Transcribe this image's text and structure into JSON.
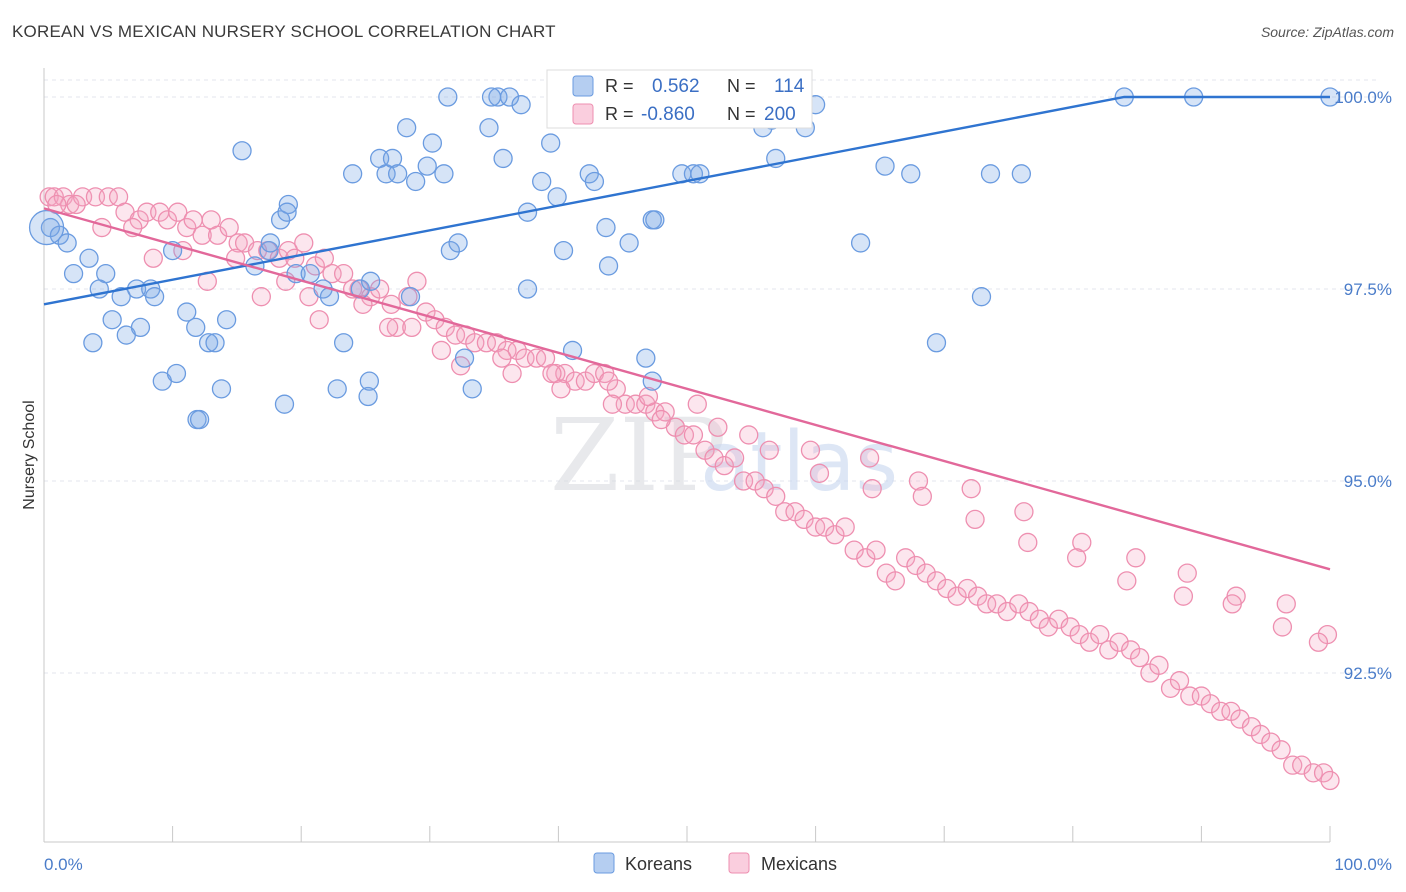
{
  "title": "KOREAN VS MEXICAN NURSERY SCHOOL CORRELATION CHART",
  "source": "Source: ZipAtlas.com",
  "watermark": {
    "zip": "ZIP",
    "atlas": "atlas"
  },
  "colors": {
    "korean": "#6a9be0",
    "korean_fill": "rgba(120,165,230,0.30)",
    "korean_line": "#2f74d0",
    "mexican": "#ee8fb0",
    "mexican_fill": "rgba(245,165,195,0.28)",
    "mexican_line": "#e2689a",
    "tick_label": "#4a7cc9",
    "grid": "#e3e6ee"
  },
  "legend": {
    "r_label": "R =",
    "n_label": "N =",
    "korean_r": "0.562",
    "korean_n": "114",
    "mexican_r": "-0.860",
    "mexican_n": "200"
  },
  "chart_data": {
    "type": "scatter",
    "title": "KOREAN VS MEXICAN NURSERY SCHOOL CORRELATION CHART",
    "xlabel": "",
    "ylabel": "Nursery School",
    "xlim": [
      0,
      100
    ],
    "ylim": [
      90.0,
      100.4
    ],
    "x_tick_labels": [
      "0.0%",
      "100.0%"
    ],
    "y_ticks": [
      92.5,
      95.0,
      97.5,
      100.0
    ],
    "y_tick_labels": [
      "92.5%",
      "95.0%",
      "97.5%",
      "100.0%"
    ],
    "grid": true,
    "legend_position": "top-center",
    "series": [
      {
        "name": "Koreans",
        "r": 0.562,
        "n": 114,
        "trend": [
          [
            0,
            97.3
          ],
          [
            84,
            100.0
          ],
          [
            100,
            100.0
          ]
        ],
        "points": [
          [
            0.5,
            98.3
          ],
          [
            1.2,
            98.2
          ],
          [
            1.8,
            98.1
          ],
          [
            3.5,
            97.9
          ],
          [
            2.3,
            97.7
          ],
          [
            4.8,
            97.7
          ],
          [
            4.3,
            97.5
          ],
          [
            6.0,
            97.4
          ],
          [
            7.2,
            97.5
          ],
          [
            8.3,
            97.5
          ],
          [
            8.6,
            97.4
          ],
          [
            10.0,
            98.0
          ],
          [
            11.1,
            97.2
          ],
          [
            11.8,
            97.0
          ],
          [
            12.8,
            96.8
          ],
          [
            13.3,
            96.8
          ],
          [
            14.2,
            97.1
          ],
          [
            5.3,
            97.1
          ],
          [
            7.5,
            97.0
          ],
          [
            9.2,
            96.3
          ],
          [
            6.4,
            96.9
          ],
          [
            3.8,
            96.8
          ],
          [
            10.3,
            96.4
          ],
          [
            13.8,
            96.2
          ],
          [
            11.9,
            95.8
          ],
          [
            12.1,
            95.8
          ],
          [
            15.4,
            99.3
          ],
          [
            17.5,
            98.0
          ],
          [
            18.4,
            98.4
          ],
          [
            19.0,
            98.6
          ],
          [
            18.9,
            98.5
          ],
          [
            16.4,
            97.8
          ],
          [
            17.6,
            98.1
          ],
          [
            19.6,
            97.7
          ],
          [
            20.7,
            97.7
          ],
          [
            21.7,
            97.5
          ],
          [
            22.2,
            97.4
          ],
          [
            23.3,
            96.8
          ],
          [
            24.0,
            99.0
          ],
          [
            24.6,
            97.5
          ],
          [
            25.4,
            97.6
          ],
          [
            26.1,
            99.2
          ],
          [
            26.6,
            99.0
          ],
          [
            27.1,
            99.2
          ],
          [
            27.5,
            99.0
          ],
          [
            28.2,
            99.6
          ],
          [
            28.5,
            97.4
          ],
          [
            28.9,
            98.9
          ],
          [
            29.8,
            99.1
          ],
          [
            30.2,
            99.4
          ],
          [
            31.1,
            99.0
          ],
          [
            31.6,
            98.0
          ],
          [
            32.2,
            98.1
          ],
          [
            32.7,
            96.6
          ],
          [
            33.3,
            96.2
          ],
          [
            34.6,
            99.6
          ],
          [
            35.3,
            100.0
          ],
          [
            35.7,
            99.2
          ],
          [
            36.2,
            100.0
          ],
          [
            37.1,
            99.9
          ],
          [
            37.6,
            98.5
          ],
          [
            37.6,
            97.5
          ],
          [
            38.7,
            98.9
          ],
          [
            39.4,
            99.4
          ],
          [
            39.9,
            98.7
          ],
          [
            40.4,
            98.0
          ],
          [
            41.1,
            96.7
          ],
          [
            41.6,
            100.0
          ],
          [
            42.4,
            99.0
          ],
          [
            42.8,
            98.9
          ],
          [
            43.7,
            98.3
          ],
          [
            45.5,
            98.1
          ],
          [
            46.8,
            96.6
          ],
          [
            47.3,
            98.4
          ],
          [
            47.5,
            98.4
          ],
          [
            48.3,
            100.0
          ],
          [
            49.6,
            99.0
          ],
          [
            50.5,
            99.0
          ],
          [
            51.0,
            99.0
          ],
          [
            52.9,
            99.8
          ],
          [
            54.2,
            100.0
          ],
          [
            55.9,
            99.6
          ],
          [
            56.9,
            99.2
          ],
          [
            59.2,
            99.6
          ],
          [
            65.4,
            99.1
          ],
          [
            67.4,
            99.0
          ],
          [
            69.4,
            96.8
          ],
          [
            72.9,
            97.4
          ],
          [
            18.7,
            96.0
          ],
          [
            22.8,
            96.2
          ],
          [
            25.2,
            96.1
          ],
          [
            31.4,
            100.0
          ],
          [
            34.8,
            100.0
          ],
          [
            41.0,
            100.0
          ],
          [
            43.9,
            97.8
          ],
          [
            56.2,
            100.0
          ],
          [
            57.3,
            99.9
          ],
          [
            56.6,
            99.7
          ],
          [
            76.0,
            99.0
          ],
          [
            73.6,
            99.0
          ],
          [
            63.5,
            98.1
          ],
          [
            47.3,
            96.3
          ],
          [
            25.3,
            96.3
          ],
          [
            84.0,
            100.0
          ],
          [
            89.4,
            100.0
          ],
          [
            100.0,
            100.0
          ],
          [
            60.0,
            99.9
          ]
        ]
      },
      {
        "name": "Mexicans",
        "r": -0.86,
        "n": 200,
        "trend": [
          [
            0,
            98.55
          ],
          [
            100,
            93.85
          ]
        ],
        "points": [
          [
            0.4,
            98.7
          ],
          [
            0.8,
            98.7
          ],
          [
            1.5,
            98.7
          ],
          [
            2.0,
            98.6
          ],
          [
            3.0,
            98.7
          ],
          [
            4.0,
            98.7
          ],
          [
            5.0,
            98.7
          ],
          [
            5.8,
            98.7
          ],
          [
            6.3,
            98.5
          ],
          [
            7.4,
            98.4
          ],
          [
            8.0,
            98.5
          ],
          [
            9.0,
            98.5
          ],
          [
            9.6,
            98.4
          ],
          [
            10.4,
            98.5
          ],
          [
            11.1,
            98.3
          ],
          [
            11.6,
            98.4
          ],
          [
            12.3,
            98.2
          ],
          [
            13.0,
            98.4
          ],
          [
            13.5,
            98.2
          ],
          [
            14.4,
            98.3
          ],
          [
            15.1,
            98.1
          ],
          [
            15.6,
            98.1
          ],
          [
            16.6,
            98.0
          ],
          [
            17.4,
            98.0
          ],
          [
            18.3,
            97.9
          ],
          [
            19.0,
            98.0
          ],
          [
            19.5,
            97.9
          ],
          [
            20.2,
            98.1
          ],
          [
            21.1,
            97.8
          ],
          [
            21.8,
            97.9
          ],
          [
            22.4,
            97.7
          ],
          [
            23.3,
            97.7
          ],
          [
            24.0,
            97.5
          ],
          [
            24.5,
            97.5
          ],
          [
            25.4,
            97.4
          ],
          [
            26.1,
            97.5
          ],
          [
            27.0,
            97.3
          ],
          [
            27.4,
            97.0
          ],
          [
            28.3,
            97.4
          ],
          [
            29.0,
            97.6
          ],
          [
            29.7,
            97.2
          ],
          [
            30.4,
            97.1
          ],
          [
            31.2,
            97.0
          ],
          [
            32.0,
            96.9
          ],
          [
            32.8,
            96.9
          ],
          [
            33.5,
            96.8
          ],
          [
            34.4,
            96.8
          ],
          [
            35.2,
            96.8
          ],
          [
            36.0,
            96.7
          ],
          [
            36.8,
            96.7
          ],
          [
            37.4,
            96.6
          ],
          [
            38.3,
            96.6
          ],
          [
            39.0,
            96.6
          ],
          [
            39.8,
            96.4
          ],
          [
            40.5,
            96.4
          ],
          [
            41.3,
            96.3
          ],
          [
            42.1,
            96.3
          ],
          [
            42.8,
            96.4
          ],
          [
            43.6,
            96.4
          ],
          [
            44.5,
            96.2
          ],
          [
            45.2,
            96.0
          ],
          [
            46.0,
            96.0
          ],
          [
            46.8,
            96.0
          ],
          [
            47.5,
            95.9
          ],
          [
            48.3,
            95.9
          ],
          [
            49.1,
            95.7
          ],
          [
            49.8,
            95.6
          ],
          [
            50.5,
            95.6
          ],
          [
            51.4,
            95.4
          ],
          [
            52.1,
            95.3
          ],
          [
            52.9,
            95.2
          ],
          [
            53.7,
            95.3
          ],
          [
            54.4,
            95.0
          ],
          [
            55.3,
            95.0
          ],
          [
            56.0,
            94.9
          ],
          [
            56.9,
            94.8
          ],
          [
            57.6,
            94.6
          ],
          [
            58.4,
            94.6
          ],
          [
            59.1,
            94.5
          ],
          [
            60.0,
            94.4
          ],
          [
            60.7,
            94.4
          ],
          [
            61.5,
            94.3
          ],
          [
            62.3,
            94.4
          ],
          [
            63.0,
            94.1
          ],
          [
            63.9,
            94.0
          ],
          [
            64.7,
            94.1
          ],
          [
            65.5,
            93.8
          ],
          [
            66.2,
            93.7
          ],
          [
            67.0,
            94.0
          ],
          [
            67.8,
            93.9
          ],
          [
            68.6,
            93.8
          ],
          [
            69.4,
            93.7
          ],
          [
            70.2,
            93.6
          ],
          [
            71.0,
            93.5
          ],
          [
            71.8,
            93.6
          ],
          [
            72.6,
            93.5
          ],
          [
            73.3,
            93.4
          ],
          [
            74.1,
            93.4
          ],
          [
            74.9,
            93.3
          ],
          [
            75.8,
            93.4
          ],
          [
            76.6,
            93.3
          ],
          [
            77.4,
            93.2
          ],
          [
            78.1,
            93.1
          ],
          [
            78.9,
            93.2
          ],
          [
            79.8,
            93.1
          ],
          [
            80.5,
            93.0
          ],
          [
            81.3,
            92.9
          ],
          [
            82.1,
            93.0
          ],
          [
            82.8,
            92.8
          ],
          [
            83.6,
            92.9
          ],
          [
            84.5,
            92.8
          ],
          [
            85.2,
            92.7
          ],
          [
            86.0,
            92.5
          ],
          [
            86.7,
            92.6
          ],
          [
            87.6,
            92.3
          ],
          [
            88.3,
            92.4
          ],
          [
            89.1,
            92.2
          ],
          [
            90.0,
            92.2
          ],
          [
            90.7,
            92.1
          ],
          [
            91.5,
            92.0
          ],
          [
            92.3,
            92.0
          ],
          [
            93.0,
            91.9
          ],
          [
            93.9,
            91.8
          ],
          [
            94.6,
            91.7
          ],
          [
            95.4,
            91.6
          ],
          [
            96.2,
            91.5
          ],
          [
            97.1,
            91.3
          ],
          [
            97.8,
            91.3
          ],
          [
            98.7,
            91.2
          ],
          [
            99.5,
            91.2
          ],
          [
            100.0,
            91.1
          ],
          [
            1.0,
            98.6
          ],
          [
            2.5,
            98.6
          ],
          [
            4.5,
            98.3
          ],
          [
            6.9,
            98.3
          ],
          [
            10.8,
            98.0
          ],
          [
            14.9,
            97.9
          ],
          [
            18.8,
            97.6
          ],
          [
            21.4,
            97.1
          ],
          [
            26.8,
            97.0
          ],
          [
            30.9,
            96.7
          ],
          [
            35.6,
            96.6
          ],
          [
            39.5,
            96.4
          ],
          [
            43.9,
            96.3
          ],
          [
            47.0,
            96.1
          ],
          [
            50.8,
            96.0
          ],
          [
            54.8,
            95.6
          ],
          [
            59.6,
            95.4
          ],
          [
            64.2,
            95.3
          ],
          [
            68.0,
            95.0
          ],
          [
            72.1,
            94.9
          ],
          [
            76.2,
            94.6
          ],
          [
            80.7,
            94.2
          ],
          [
            84.9,
            94.0
          ],
          [
            88.9,
            93.8
          ],
          [
            92.7,
            93.5
          ],
          [
            96.6,
            93.4
          ],
          [
            99.8,
            93.0
          ],
          [
            8.5,
            97.9
          ],
          [
            12.7,
            97.6
          ],
          [
            16.9,
            97.4
          ],
          [
            20.6,
            97.4
          ],
          [
            24.8,
            97.3
          ],
          [
            28.6,
            97.0
          ],
          [
            32.4,
            96.5
          ],
          [
            36.4,
            96.4
          ],
          [
            40.2,
            96.2
          ],
          [
            44.2,
            96.0
          ],
          [
            48.0,
            95.8
          ],
          [
            52.4,
            95.7
          ],
          [
            56.4,
            95.4
          ],
          [
            60.3,
            95.1
          ],
          [
            64.4,
            94.9
          ],
          [
            68.3,
            94.8
          ],
          [
            72.4,
            94.5
          ],
          [
            76.5,
            94.2
          ],
          [
            80.3,
            94.0
          ],
          [
            84.2,
            93.7
          ],
          [
            88.6,
            93.5
          ],
          [
            92.4,
            93.4
          ],
          [
            96.3,
            93.1
          ],
          [
            99.1,
            92.9
          ]
        ]
      }
    ]
  },
  "bottom_legend": {
    "korean": "Koreans",
    "mexican": "Mexicans"
  }
}
